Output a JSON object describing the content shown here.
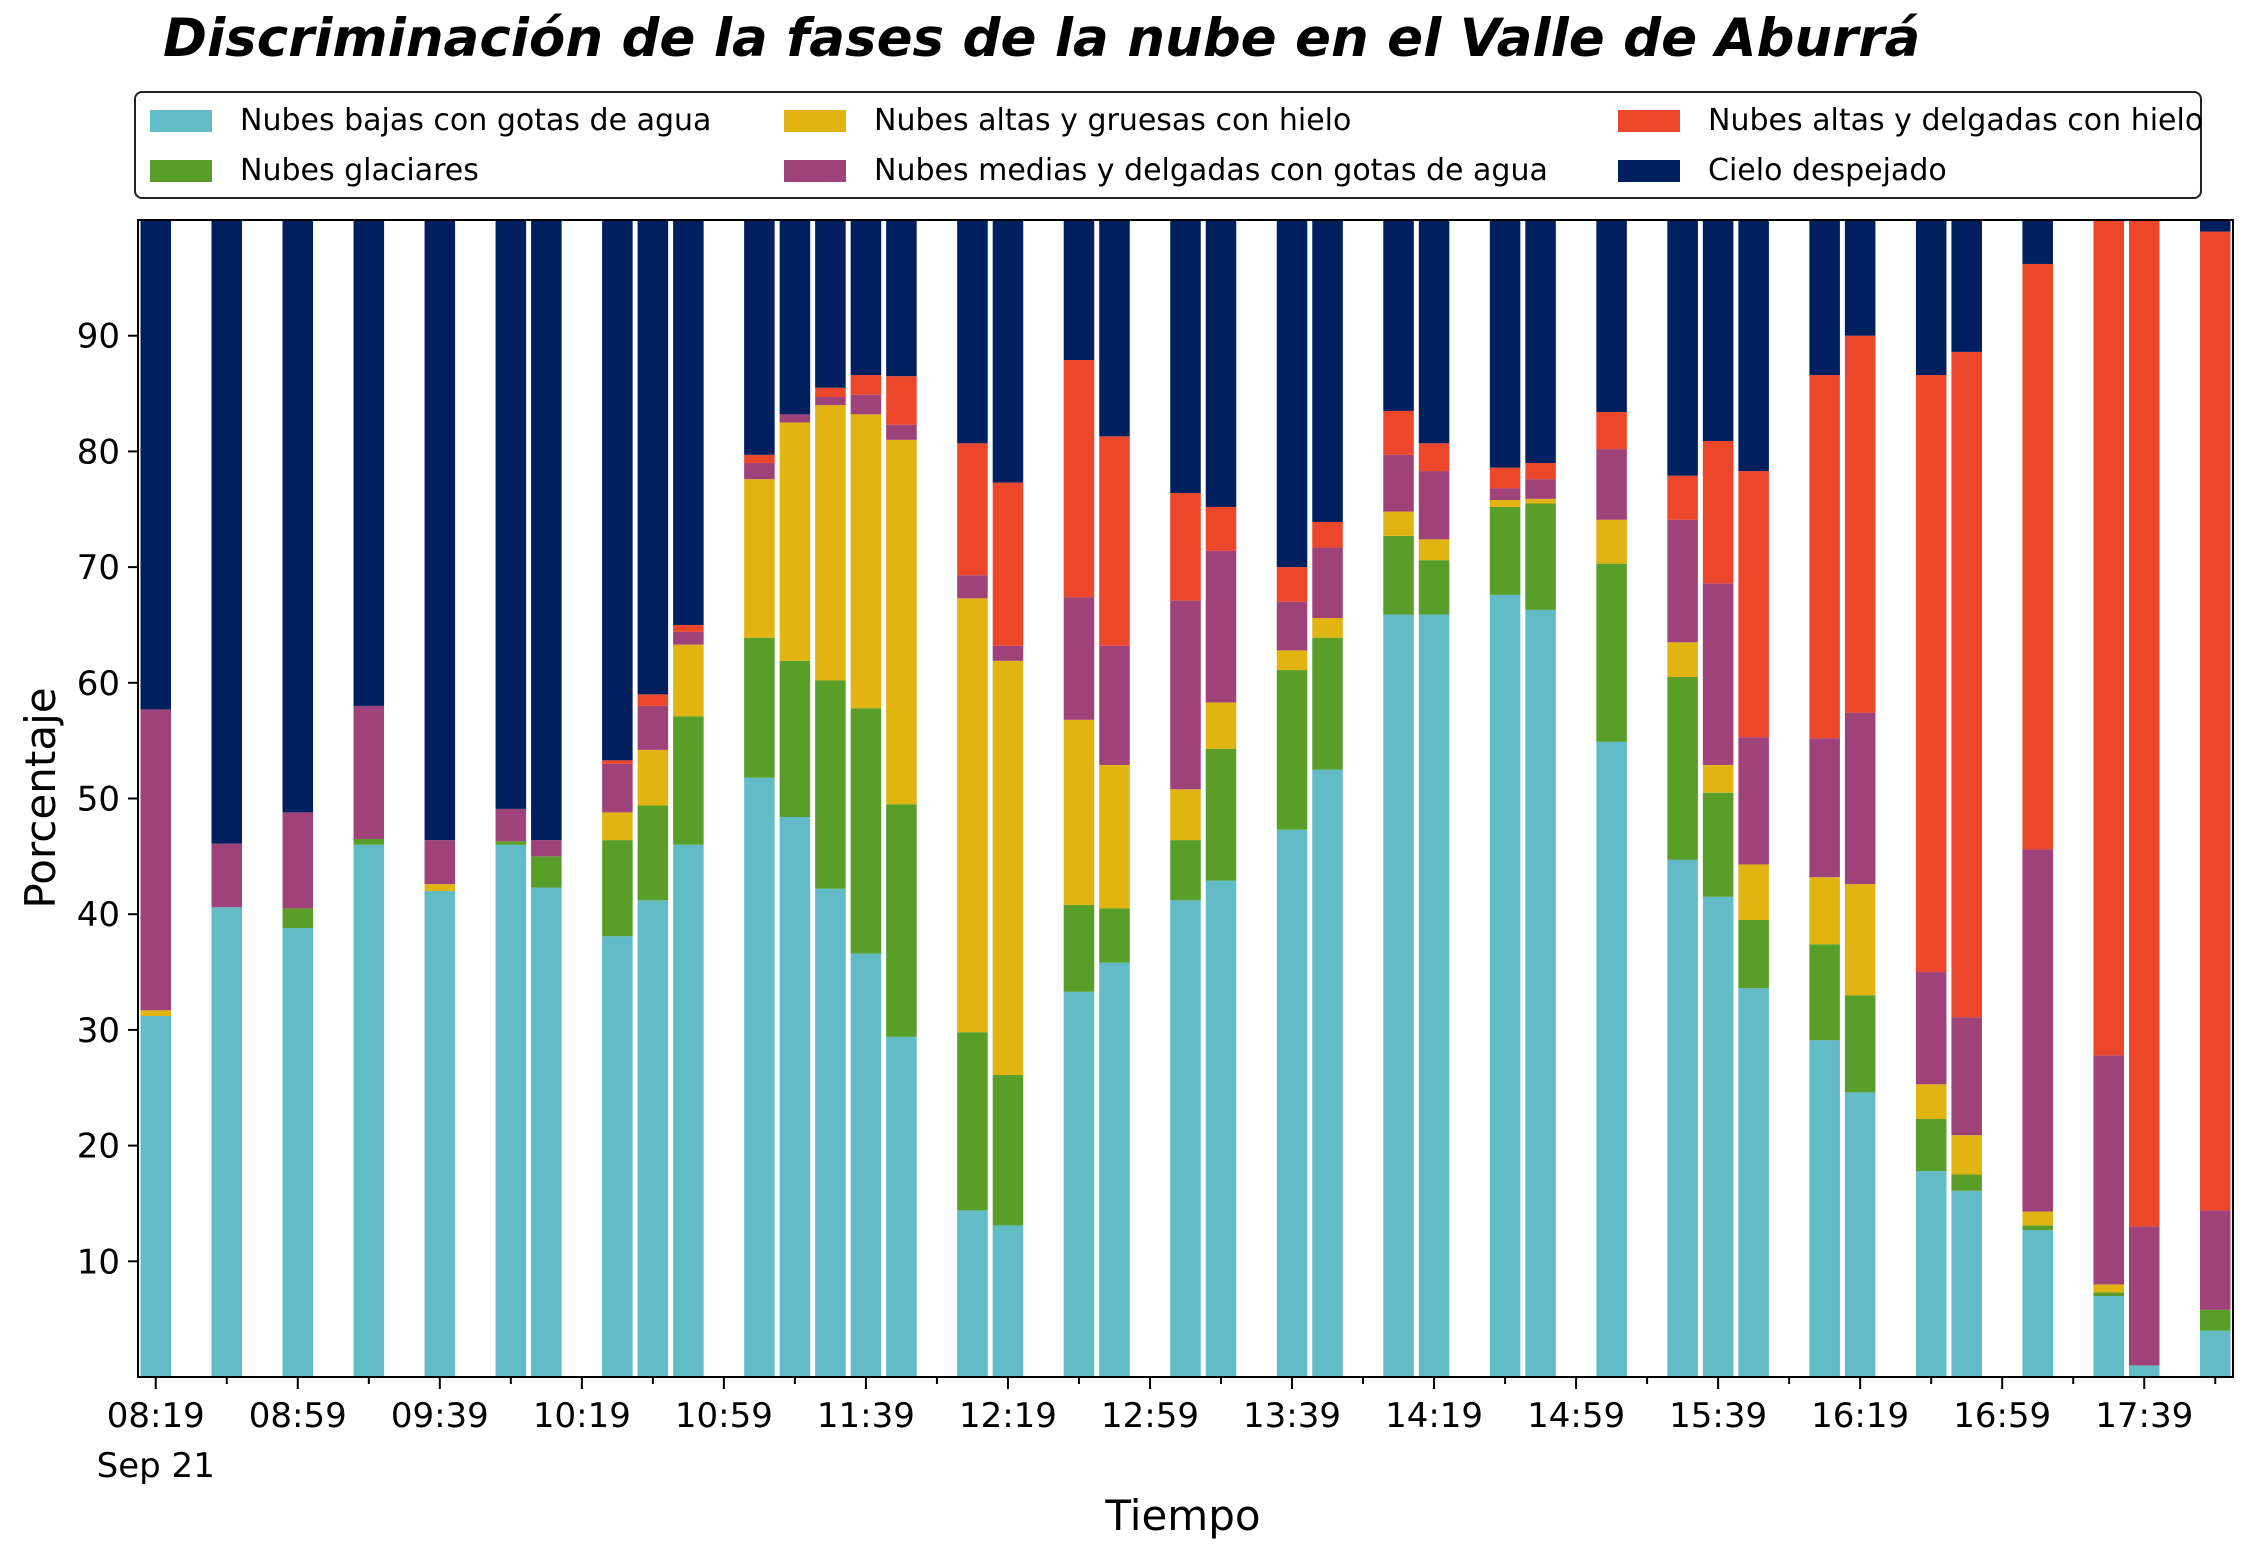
{
  "chart_data": {
    "type": "bar",
    "stacked": true,
    "title": "Discriminación de la fases de la nube en el Valle de Aburrá",
    "xlabel": "Tiempo",
    "ylabel": "Porcentaje",
    "ylim": [
      0,
      100
    ],
    "yticks": [
      10,
      20,
      30,
      40,
      50,
      60,
      70,
      80,
      90
    ],
    "xtick_labels": [
      "08:19",
      "08:59",
      "09:39",
      "10:19",
      "10:59",
      "11:39",
      "12:19",
      "12:59",
      "13:39",
      "14:19",
      "14:59",
      "15:39",
      "16:19",
      "16:59",
      "17:39"
    ],
    "xtick_sublabel": "Sep 21",
    "grid": false,
    "legend_position": "top",
    "colors": {
      "bajas": "#62bcc8",
      "glaciares": "#5a9e2a",
      "altas_gruesas": "#e2b411",
      "medias": "#a0427a",
      "altas_delgadas": "#ec472a",
      "despejado": "#001f5f"
    },
    "series": [
      {
        "key": "bajas",
        "name": "Nubes bajas con gotas de agua"
      },
      {
        "key": "glaciares",
        "name": "Nubes glaciares"
      },
      {
        "key": "altas_gruesas",
        "name": "Nubes altas y gruesas con hielo"
      },
      {
        "key": "medias",
        "name": "Nubes medias y delgadas con gotas de agua"
      },
      {
        "key": "altas_delgadas",
        "name": "Nubes altas y delgadas con hielo"
      },
      {
        "key": "despejado",
        "name": "Cielo despejado"
      }
    ],
    "bars": [
      {
        "slot": 0,
        "values": [
          31.2,
          0,
          0.5,
          26.0,
          0,
          42.3
        ]
      },
      {
        "slot": 2,
        "values": [
          40.6,
          0,
          0,
          5.5,
          0,
          53.9
        ]
      },
      {
        "slot": 4,
        "values": [
          38.8,
          1.7,
          0,
          8.3,
          0,
          51.2
        ]
      },
      {
        "slot": 6,
        "values": [
          46.0,
          0.5,
          0,
          11.5,
          0,
          42.0
        ]
      },
      {
        "slot": 8,
        "values": [
          42.0,
          0,
          0.6,
          3.8,
          0,
          53.6
        ]
      },
      {
        "slot": 10,
        "values": [
          46.0,
          0.3,
          0,
          2.8,
          0,
          50.9
        ]
      },
      {
        "slot": 11,
        "values": [
          42.3,
          2.7,
          0,
          1.4,
          0,
          53.6
        ]
      },
      {
        "slot": 13,
        "values": [
          38.1,
          8.3,
          2.4,
          4.2,
          0.3,
          46.7
        ]
      },
      {
        "slot": 14,
        "values": [
          41.2,
          8.2,
          4.8,
          3.8,
          1.0,
          41.0
        ]
      },
      {
        "slot": 15,
        "values": [
          46.0,
          11.1,
          6.2,
          1.1,
          0.6,
          35.0
        ]
      },
      {
        "slot": 17,
        "values": [
          51.8,
          12.1,
          13.7,
          1.4,
          0.7,
          20.3
        ]
      },
      {
        "slot": 18,
        "values": [
          48.4,
          13.5,
          20.6,
          0.7,
          0,
          16.8
        ]
      },
      {
        "slot": 19,
        "values": [
          42.2,
          18.0,
          23.8,
          0.7,
          0.8,
          14.5
        ]
      },
      {
        "slot": 20,
        "values": [
          36.6,
          21.2,
          25.4,
          1.7,
          1.7,
          13.4
        ]
      },
      {
        "slot": 21,
        "values": [
          29.4,
          20.1,
          31.5,
          1.3,
          4.2,
          13.5
        ]
      },
      {
        "slot": 23,
        "values": [
          14.4,
          15.4,
          37.5,
          2.0,
          11.4,
          19.3
        ]
      },
      {
        "slot": 24,
        "values": [
          13.1,
          13.0,
          35.8,
          1.3,
          14.1,
          22.7
        ]
      },
      {
        "slot": 26,
        "values": [
          33.3,
          7.5,
          16.0,
          10.6,
          20.5,
          12.1
        ]
      },
      {
        "slot": 27,
        "values": [
          35.8,
          4.7,
          12.4,
          10.3,
          18.1,
          18.7
        ]
      },
      {
        "slot": 29,
        "values": [
          41.2,
          5.2,
          4.4,
          16.3,
          9.3,
          23.6
        ]
      },
      {
        "slot": 30,
        "values": [
          42.9,
          11.4,
          4.0,
          13.1,
          3.8,
          24.8
        ]
      },
      {
        "slot": 32,
        "values": [
          47.3,
          13.8,
          1.7,
          4.2,
          3.0,
          30.0
        ]
      },
      {
        "slot": 33,
        "values": [
          52.5,
          11.4,
          1.7,
          6.1,
          2.2,
          26.1
        ]
      },
      {
        "slot": 35,
        "values": [
          65.9,
          6.8,
          2.1,
          4.9,
          3.8,
          16.5
        ]
      },
      {
        "slot": 36,
        "values": [
          65.9,
          4.7,
          1.8,
          5.9,
          2.4,
          19.3
        ]
      },
      {
        "slot": 38,
        "values": [
          67.6,
          7.6,
          0.6,
          1.0,
          1.8,
          21.4
        ]
      },
      {
        "slot": 39,
        "values": [
          66.3,
          9.2,
          0.4,
          1.7,
          1.4,
          21.0
        ]
      },
      {
        "slot": 41,
        "values": [
          54.9,
          15.4,
          3.8,
          6.1,
          3.2,
          16.6
        ]
      },
      {
        "slot": 43,
        "values": [
          44.7,
          15.8,
          3.0,
          10.6,
          3.8,
          22.1
        ]
      },
      {
        "slot": 44,
        "values": [
          41.5,
          9.0,
          2.4,
          15.7,
          12.3,
          19.1
        ]
      },
      {
        "slot": 45,
        "values": [
          33.6,
          5.9,
          4.8,
          11.0,
          23.0,
          21.7
        ]
      },
      {
        "slot": 47,
        "values": [
          29.1,
          8.3,
          5.8,
          12.0,
          31.4,
          13.4
        ]
      },
      {
        "slot": 48,
        "values": [
          24.6,
          8.4,
          9.6,
          14.8,
          32.6,
          10.0
        ]
      },
      {
        "slot": 50,
        "values": [
          17.8,
          4.5,
          3.0,
          9.7,
          51.6,
          13.4
        ]
      },
      {
        "slot": 51,
        "values": [
          16.1,
          1.4,
          3.4,
          10.2,
          57.5,
          11.4
        ]
      },
      {
        "slot": 53,
        "values": [
          12.7,
          0.4,
          1.2,
          31.3,
          50.6,
          3.8
        ]
      },
      {
        "slot": 55,
        "values": [
          7.0,
          0.3,
          0.7,
          19.8,
          72.2,
          0
        ]
      },
      {
        "slot": 56,
        "values": [
          1.0,
          0,
          0,
          12.0,
          87.0,
          0
        ]
      },
      {
        "slot": 58,
        "values": [
          4.0,
          1.8,
          0,
          8.6,
          84.6,
          1.0
        ]
      }
    ]
  }
}
